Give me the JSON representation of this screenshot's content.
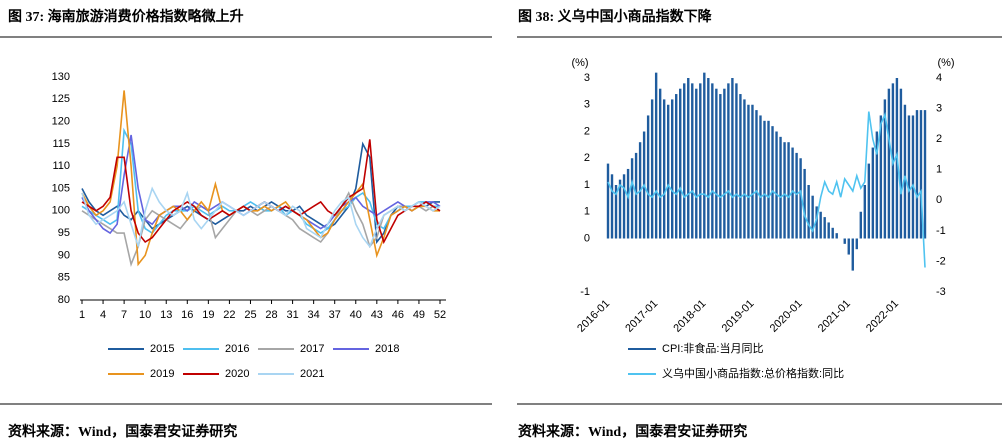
{
  "chart_data": [
    {
      "type": "line",
      "title": "图 37: 海南旅游消费价格指数略微上升",
      "source": "资料来源：Wind，国泰君安证券研究",
      "x": [
        1,
        2,
        3,
        4,
        5,
        6,
        7,
        8,
        9,
        10,
        11,
        12,
        13,
        14,
        15,
        16,
        17,
        18,
        19,
        20,
        21,
        22,
        23,
        24,
        25,
        26,
        27,
        28,
        29,
        30,
        31,
        32,
        33,
        34,
        35,
        36,
        37,
        38,
        39,
        40,
        41,
        42,
        43,
        44,
        45,
        46,
        47,
        48,
        49,
        50,
        51,
        52
      ],
      "xlim": [
        1,
        52
      ],
      "xticks": [
        1,
        4,
        7,
        10,
        13,
        16,
        19,
        22,
        25,
        28,
        31,
        34,
        37,
        40,
        43,
        46,
        49,
        52
      ],
      "ylim": [
        80,
        130
      ],
      "yticks": [
        80,
        85,
        90,
        95,
        100,
        105,
        110,
        115,
        120,
        125,
        130
      ],
      "series": [
        {
          "name": "2015",
          "color": "#1f5c9e",
          "values": [
            105,
            102,
            100,
            99,
            100,
            101,
            99,
            98,
            100,
            98,
            96,
            97,
            98,
            99,
            100,
            101,
            100,
            99,
            98,
            97,
            98,
            99,
            100,
            100,
            101,
            100,
            101,
            102,
            101,
            100,
            100,
            101,
            99,
            98,
            97,
            96,
            97,
            99,
            101,
            105,
            115,
            112,
            93,
            95,
            99,
            101,
            100,
            101,
            102,
            101,
            102,
            102
          ]
        },
        {
          "name": "2016",
          "color": "#4fbfef",
          "values": [
            101,
            100,
            99,
            98,
            97,
            98,
            118,
            115,
            100,
            96,
            95,
            97,
            99,
            100,
            100,
            100,
            101,
            100,
            99,
            100,
            101,
            100,
            100,
            101,
            102,
            101,
            100,
            100,
            101,
            99,
            100,
            99,
            97,
            96,
            95,
            96,
            98,
            100,
            101,
            103,
            104,
            102,
            97,
            96,
            99,
            100,
            101,
            101,
            102,
            102,
            101,
            101
          ]
        },
        {
          "name": "2017",
          "color": "#a6a6a6",
          "values": [
            100,
            99,
            98,
            97,
            96,
            95,
            95,
            88,
            92,
            98,
            100,
            99,
            98,
            97,
            96,
            98,
            100,
            101,
            100,
            94,
            96,
            98,
            100,
            101,
            100,
            99,
            100,
            101,
            100,
            99,
            98,
            96,
            95,
            94,
            93,
            95,
            98,
            101,
            104,
            100,
            97,
            92,
            94,
            99,
            100,
            101,
            101,
            100,
            101,
            100,
            101,
            100
          ]
        },
        {
          "name": "2018",
          "color": "#6464e0",
          "values": [
            103,
            100,
            98,
            96,
            95,
            97,
            108,
            117,
            105,
            98,
            97,
            99,
            100,
            101,
            101,
            100,
            102,
            101,
            100,
            101,
            102,
            101,
            100,
            99,
            100,
            101,
            102,
            101,
            100,
            101,
            100,
            99,
            98,
            97,
            96,
            97,
            99,
            101,
            102,
            103,
            101,
            100,
            99,
            100,
            101,
            102,
            101,
            100,
            101,
            102,
            102,
            101
          ]
        },
        {
          "name": "2019",
          "color": "#e8931e",
          "values": [
            104,
            101,
            99,
            100,
            102,
            110,
            127,
            110,
            88,
            90,
            95,
            99,
            100,
            101,
            100,
            98,
            100,
            102,
            100,
            106,
            100,
            99,
            100,
            101,
            100,
            100,
            101,
            100,
            101,
            102,
            100,
            99,
            98,
            96,
            94,
            95,
            98,
            100,
            102,
            104,
            106,
            98,
            90,
            94,
            99,
            100,
            101,
            100,
            101,
            101,
            100,
            100
          ]
        },
        {
          "name": "2020",
          "color": "#c00000",
          "values": [
            102,
            101,
            100,
            101,
            103,
            112,
            112,
            100,
            95,
            93,
            94,
            96,
            98,
            100,
            101,
            102,
            101,
            99,
            98,
            99,
            100,
            99,
            100,
            101,
            100,
            101,
            102,
            101,
            100,
            101,
            100,
            99,
            100,
            101,
            102,
            100,
            99,
            101,
            103,
            104,
            105,
            116,
            98,
            93,
            96,
            99,
            100,
            101,
            101,
            102,
            101,
            100
          ]
        },
        {
          "name": "2021",
          "color": "#a9d5f2",
          "values": [
            104,
            99,
            97,
            98,
            99,
            100,
            102,
            97,
            92,
            100,
            105,
            102,
            100,
            99,
            100,
            104,
            98,
            96,
            98,
            100,
            102,
            101,
            100,
            99,
            100,
            101,
            102,
            101,
            100,
            99,
            101,
            100,
            96,
            95,
            94,
            97,
            100,
            102,
            103,
            97,
            94,
            92,
            96,
            99,
            100,
            101,
            100,
            101,
            102,
            101,
            100,
            101
          ]
        }
      ]
    },
    {
      "type": "combo",
      "title": "图 38: 义乌中国小商品指数下降",
      "source": "资料来源：Wind，国泰君安证券研究",
      "ylabel": "(%)",
      "y2label": "(%)",
      "categories": [
        "2016-01",
        null,
        null,
        null,
        null,
        null,
        null,
        null,
        null,
        null,
        null,
        null,
        "2017-01",
        null,
        null,
        null,
        null,
        null,
        null,
        null,
        null,
        null,
        null,
        null,
        "2018-01",
        null,
        null,
        null,
        null,
        null,
        null,
        null,
        null,
        null,
        null,
        null,
        "2019-01",
        null,
        null,
        null,
        null,
        null,
        null,
        null,
        null,
        null,
        null,
        null,
        "2020-01",
        null,
        null,
        null,
        null,
        null,
        null,
        null,
        null,
        null,
        null,
        null,
        "2021-01",
        null,
        null,
        null,
        null,
        null,
        null,
        null,
        null,
        null,
        null,
        null,
        "2022-01",
        null,
        null,
        null,
        null,
        null,
        null,
        null
      ],
      "ylim": [
        -1,
        3
      ],
      "yticks": [
        -1,
        0,
        {
          "value": 0.5,
          "label": "1"
        },
        1,
        {
          "value": 1.5,
          "label": "2"
        },
        2,
        {
          "value": 2.5,
          "label": "3"
        },
        3
      ],
      "y2lim": [
        -3,
        4
      ],
      "y2ticks": [
        -3,
        -2,
        -1,
        0,
        1,
        2,
        3,
        4
      ],
      "series": [
        {
          "name": "CPI:非食品:当月同比",
          "color": "#1f5c9e",
          "values": [
            1.4,
            1.2,
            1.0,
            1.1,
            1.2,
            1.3,
            1.5,
            1.6,
            1.8,
            2.0,
            2.3,
            2.6,
            3.1,
            2.8,
            2.6,
            2.5,
            2.6,
            2.7,
            2.8,
            2.9,
            3.0,
            2.9,
            2.8,
            2.9,
            3.1,
            3.0,
            2.9,
            2.8,
            2.7,
            2.8,
            2.9,
            3.0,
            2.9,
            2.7,
            2.6,
            2.5,
            2.5,
            2.4,
            2.3,
            2.2,
            2.2,
            2.1,
            2.0,
            1.9,
            1.8,
            1.8,
            1.7,
            1.6,
            1.5,
            1.3,
            1.0,
            0.8,
            0.6,
            0.5,
            0.4,
            0.3,
            0.2,
            0.1,
            0,
            -0.1,
            -0.3,
            -0.6,
            -0.2,
            0.5,
            1.0,
            1.4,
            1.7,
            2.0,
            2.3,
            2.6,
            2.8,
            2.9,
            3.0,
            2.8,
            2.5,
            2.3,
            2.3,
            2.4,
            2.4,
            2.4
          ]
        },
        {
          "name": "义乌中国小商品指数:总价格指数:同比",
          "color": "#4fc3f0",
          "axis": "y2",
          "values": [
            0.6,
            0.3,
            0.2,
            0.5,
            0.4,
            0.1,
            0.6,
            0.2,
            0.3,
            0.5,
            0.2,
            0.1,
            0.3,
            0.1,
            0.2,
            0.5,
            0.3,
            0.2,
            0.4,
            0.1,
            0.2,
            0.3,
            0.1,
            0.2,
            0.2,
            0.1,
            0.3,
            0.2,
            0.1,
            0.2,
            0.3,
            0.1,
            0.2,
            0.1,
            0.2,
            0.1,
            0.2,
            0.3,
            0.1,
            0.2,
            0.1,
            0.3,
            0.2,
            0.1,
            0.2,
            0.1,
            0.3,
            0.2,
            0.3,
            -0.5,
            -0.8,
            -1.0,
            -0.6,
            0.1,
            0.6,
            0.3,
            0.2,
            0.6,
            0.1,
            0.7,
            0.5,
            0.3,
            0.8,
            0.4,
            0.6,
            2.9,
            2.0,
            1.5,
            2.5,
            2.8,
            2.0,
            1.2,
            1.5,
            0.2,
            0.8,
            0.3,
            0.5,
            0.1,
            0.3,
            -2.2
          ]
        }
      ]
    }
  ]
}
